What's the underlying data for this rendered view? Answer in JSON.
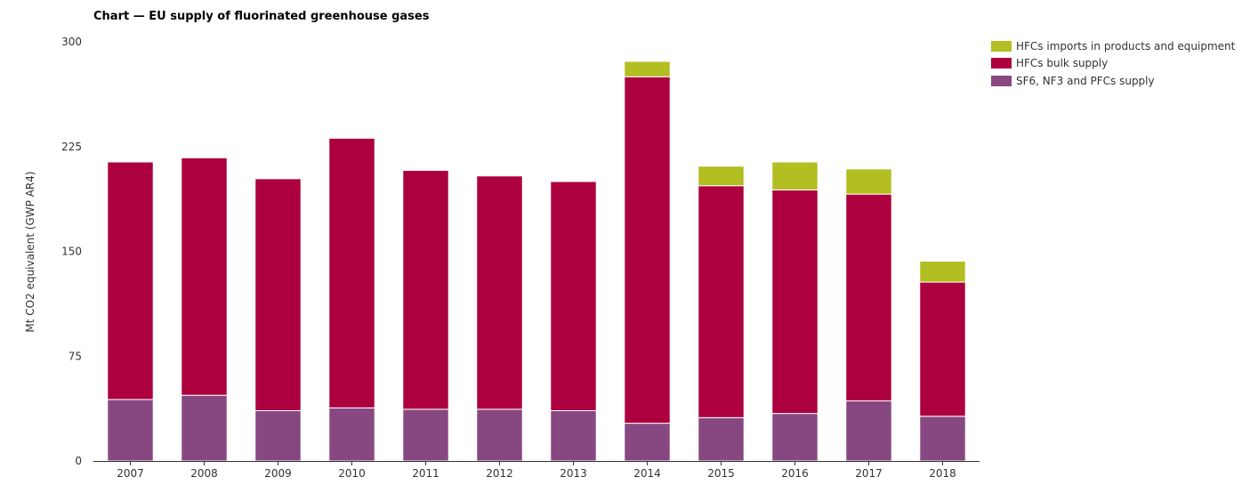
{
  "chart_data": {
    "type": "bar",
    "stacked": true,
    "title": "Chart — EU supply of fluorinated greenhouse gases",
    "xlabel": "",
    "ylabel": "Mt CO2 equivalent (GWP AR4)",
    "ylim": [
      0,
      300
    ],
    "yticks": [
      "300",
      "225",
      "150",
      "75",
      "0"
    ],
    "grid": false,
    "legend_position": "top-right",
    "categories": [
      "2007",
      "2008",
      "2009",
      "2010",
      "2011",
      "2012",
      "2013",
      "2014",
      "2015",
      "2016",
      "2017",
      "2018"
    ],
    "series": [
      {
        "name": "SF6, NF3 and PFCs supply",
        "color": "#874881",
        "values": [
          44,
          47,
          36,
          38,
          37,
          37,
          36,
          27,
          31,
          34,
          43,
          32
        ]
      },
      {
        "name": "HFCs bulk supply",
        "color": "#ac003f",
        "values": [
          170,
          170,
          166,
          193,
          171,
          167,
          164,
          248,
          166,
          160,
          148,
          96
        ]
      },
      {
        "name": "HFCs imports in products and equipment",
        "color": "#b2be21",
        "values": [
          0,
          0,
          0,
          0,
          0,
          0,
          0,
          11,
          14,
          20,
          18,
          15
        ]
      }
    ]
  }
}
